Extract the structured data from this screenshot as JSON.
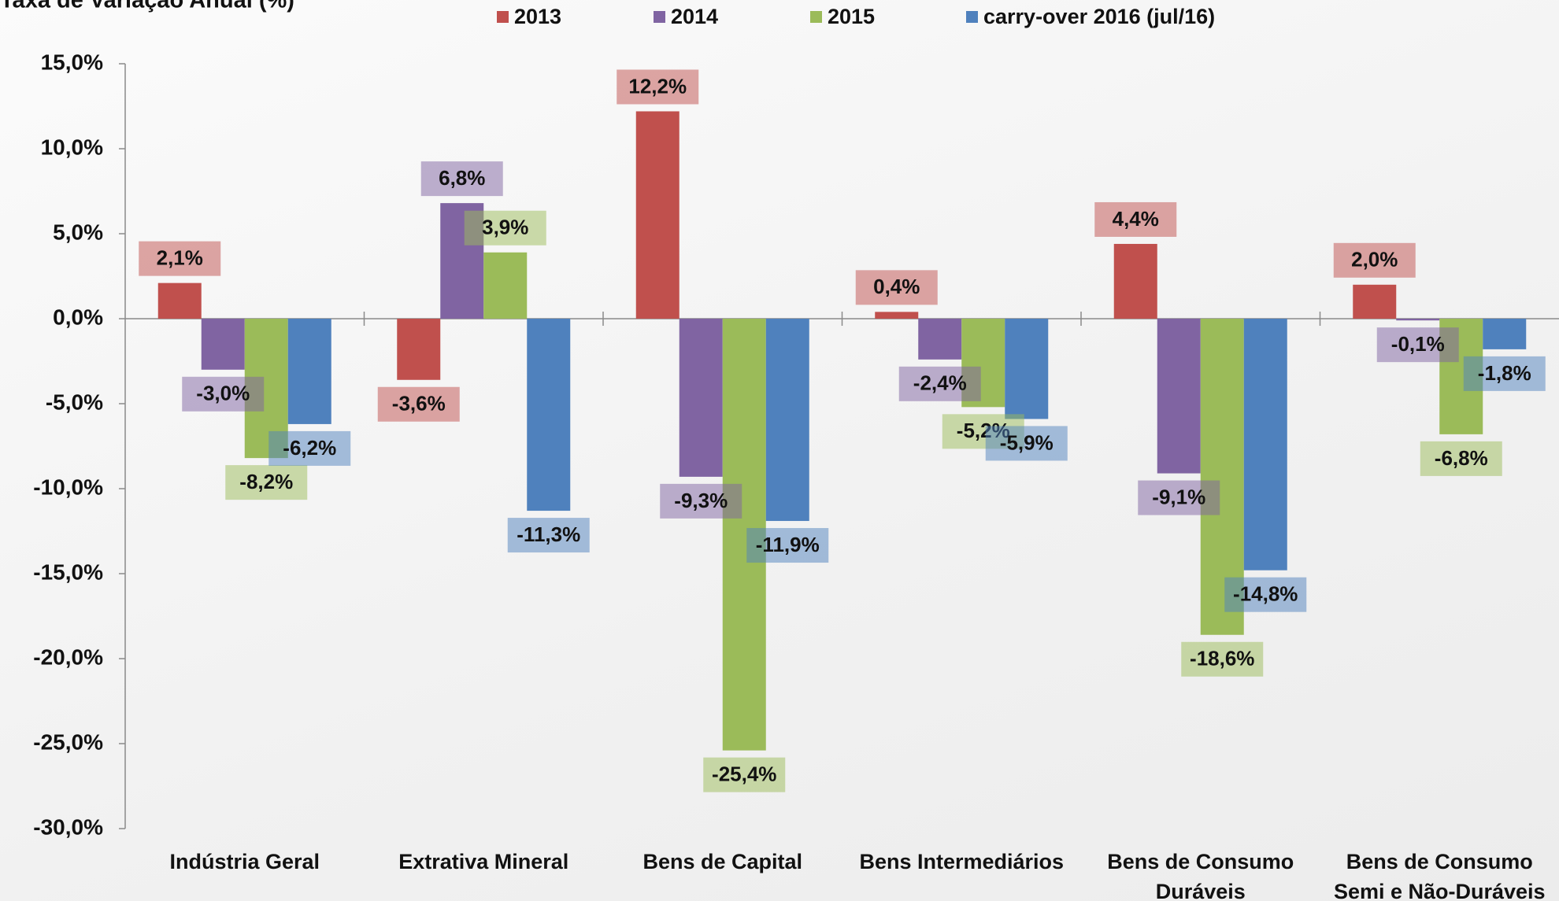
{
  "chart_data": {
    "type": "bar",
    "title": "Taxa de Variação Anual (%)",
    "categories": [
      "Indústria Geral",
      "Extrativa Mineral",
      "Bens de Capital",
      "Bens Intermediários",
      "Bens de Consumo Duráveis",
      "Bens de Consumo Semi e Não-Duráveis"
    ],
    "series": [
      {
        "name": "2013",
        "color": "#c0504d",
        "values": [
          2.1,
          -3.6,
          12.2,
          0.4,
          4.4,
          2.0
        ],
        "value_labels": [
          "2,1%",
          "-3,6%",
          "12,2%",
          "0,4%",
          "4,4%",
          "2,0%"
        ]
      },
      {
        "name": "2014",
        "color": "#8064a2",
        "values": [
          -3.0,
          6.8,
          -9.3,
          -2.4,
          -9.1,
          -0.1
        ],
        "value_labels": [
          "-3,0%",
          "6,8%",
          "-9,3%",
          "-2,4%",
          "-9,1%",
          "-0,1%"
        ]
      },
      {
        "name": "2015",
        "color": "#9bbb59",
        "values": [
          -8.2,
          3.9,
          -25.4,
          -5.2,
          -18.6,
          -6.8
        ],
        "value_labels": [
          "-8,2%",
          "3,9%",
          "-25,4%",
          "-5,2%",
          "-18,6%",
          "-6,8%"
        ]
      },
      {
        "name": "carry-over 2016 (jul/16)",
        "color": "#4f81bd",
        "values": [
          -6.2,
          -11.3,
          -11.9,
          -5.9,
          -14.8,
          -1.8
        ],
        "value_labels": [
          "-6,2%",
          "-11,3%",
          "-11,9%",
          "-5,9%",
          "-14,8%",
          "-1,8%"
        ]
      }
    ],
    "ylim": [
      -30,
      15
    ],
    "yticks": [
      {
        "value": -30,
        "label": "-30,0%"
      },
      {
        "value": -25,
        "label": "-25,0%"
      },
      {
        "value": -20,
        "label": "-20,0%"
      },
      {
        "value": -15,
        "label": "-15,0%"
      },
      {
        "value": -10,
        "label": "-10,0%"
      },
      {
        "value": -5,
        "label": "-5,0%"
      },
      {
        "value": 0,
        "label": "0,0%"
      },
      {
        "value": 5,
        "label": "5,0%"
      },
      {
        "value": 10,
        "label": "10,0%"
      },
      {
        "value": 15,
        "label": "15,0%"
      }
    ],
    "legend": "top"
  }
}
